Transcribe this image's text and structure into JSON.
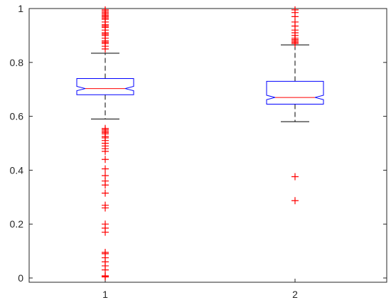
{
  "chart_data": {
    "type": "boxplot",
    "notched": true,
    "categories": [
      "1",
      "2"
    ],
    "ylim": [
      0,
      1
    ],
    "y_ticks": [
      0,
      0.2,
      0.4,
      0.6,
      0.8,
      1
    ],
    "y_tick_labels": [
      "0",
      "0.2",
      "0.4",
      "0.6",
      "0.8",
      "1"
    ],
    "x_tick_labels": [
      "1",
      "2"
    ],
    "grid": false,
    "colors": {
      "box": "#0000ff",
      "median": "#ff0000",
      "whisker": "#000000",
      "outlier": "#ff0000",
      "axis": "#262626"
    },
    "boxes": [
      {
        "category": "1",
        "q1": 0.68,
        "median": 0.703,
        "q3": 0.74,
        "notch_low": 0.695,
        "notch_high": 0.711,
        "whisker_low": 0.59,
        "whisker_high": 0.834,
        "outliers": [
          0.004,
          0.006,
          0.008,
          0.03,
          0.045,
          0.06,
          0.075,
          0.09,
          0.095,
          0.17,
          0.185,
          0.2,
          0.26,
          0.27,
          0.315,
          0.345,
          0.36,
          0.38,
          0.405,
          0.44,
          0.47,
          0.48,
          0.49,
          0.5,
          0.51,
          0.52,
          0.525,
          0.535,
          0.54,
          0.545,
          0.55,
          0.555,
          0.85,
          0.86,
          0.87,
          0.875,
          0.88,
          0.89,
          0.9,
          0.905,
          0.91,
          0.92,
          0.93,
          0.935,
          0.94,
          0.95,
          0.96,
          0.965,
          0.97,
          0.975,
          0.98,
          0.985,
          0.99,
          0.995
        ]
      },
      {
        "category": "2",
        "q1": 0.645,
        "median": 0.67,
        "q3": 0.73,
        "notch_low": 0.662,
        "notch_high": 0.678,
        "whisker_low": 0.58,
        "whisker_high": 0.865,
        "outliers": [
          0.287,
          0.376,
          0.87,
          0.875,
          0.88,
          0.885,
          0.89,
          0.9,
          0.91,
          0.92,
          0.935,
          0.95,
          0.97,
          0.985,
          0.995
        ]
      }
    ]
  }
}
